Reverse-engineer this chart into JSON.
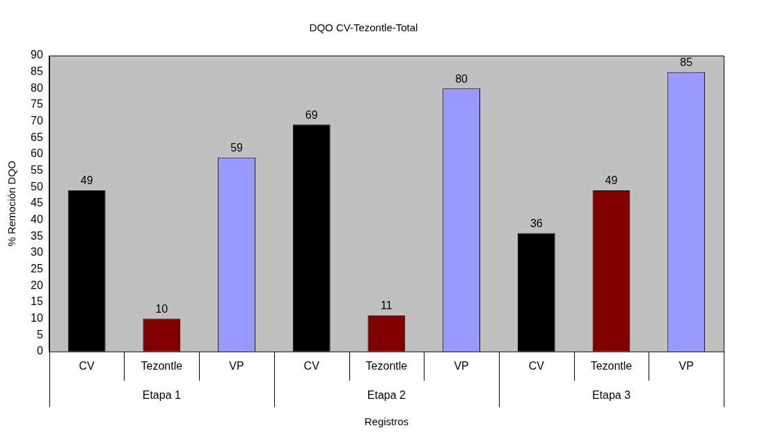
{
  "chart_data": {
    "type": "bar",
    "title": "DQO CV-Tezontle-Total",
    "xlabel": "Registros",
    "ylabel": "% Remoción DQO",
    "categories": [
      "CV",
      "Tezontle",
      "VP",
      "CV",
      "Tezontle",
      "VP",
      "CV",
      "Tezontle",
      "VP"
    ],
    "values": [
      49,
      10,
      59,
      69,
      11,
      80,
      36,
      49,
      85
    ],
    "colors": [
      "#000000",
      "#800000",
      "#9999ff",
      "#000000",
      "#800000",
      "#9999ff",
      "#000000",
      "#800000",
      "#9999ff"
    ],
    "annotations": [
      "Etapa 1",
      "Etapa 2",
      "Etapa 3"
    ],
    "ylim": [
      0,
      90
    ],
    "yticks": [
      0,
      5,
      10,
      15,
      20,
      25,
      30,
      35,
      40,
      45,
      50,
      55,
      60,
      65,
      70,
      75,
      80,
      85,
      90
    ],
    "data_labels": true,
    "grid": false,
    "legend": false
  }
}
